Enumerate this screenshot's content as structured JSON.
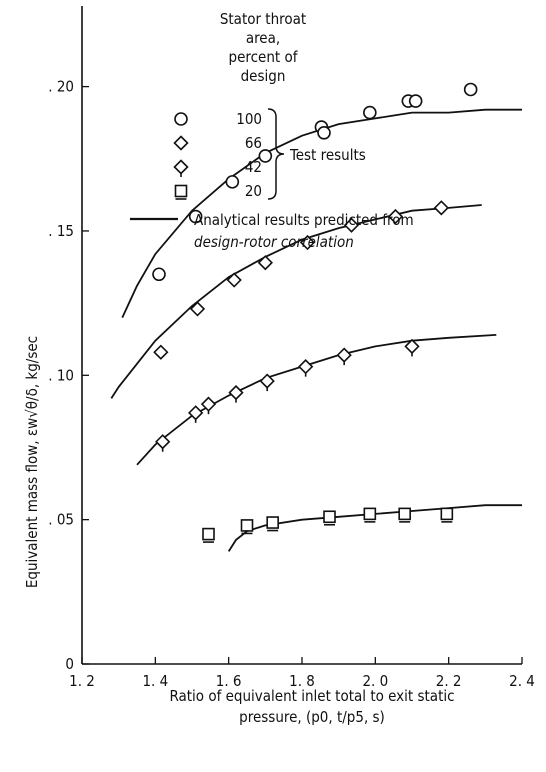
{
  "chart_data": {
    "type": "scatter",
    "xlabel_line1": "Ratio of equivalent inlet total to exit static",
    "xlabel_line2": "pressure, (p0, t/p5, s)",
    "ylabel": "Equivalent mass flow, εw√θ/δ, kg/sec",
    "xlim": [
      1.2,
      2.4
    ],
    "ylim": [
      0,
      0.23
    ],
    "x_ticks": [
      1.2,
      1.4,
      1.6,
      1.8,
      2.0,
      2.2,
      2.4
    ],
    "x_tick_labels": [
      "1. 2",
      "1. 4",
      "1. 6",
      "1. 8",
      "2. 0",
      "2. 2",
      "2. 4"
    ],
    "y_ticks": [
      0,
      0.05,
      0.1,
      0.15,
      0.2
    ],
    "y_tick_labels": [
      "0",
      ". 05",
      ". 10",
      ". 15",
      ". 20"
    ],
    "grid": false,
    "legend": {
      "title": [
        "Stator throat",
        "area,",
        "percent of",
        "design"
      ],
      "entries": [
        {
          "marker": "circle",
          "label": "100"
        },
        {
          "marker": "diamond",
          "label": "66"
        },
        {
          "marker": "diamond-flag",
          "label": "42"
        },
        {
          "marker": "square-flag",
          "label": "20"
        }
      ],
      "bracket_label": "Test results",
      "line_label": [
        "Analytical results predicted from",
        "design-rotor correlation"
      ]
    },
    "series": [
      {
        "marker": "circle",
        "label": "100",
        "points": [
          [
            1.41,
            0.135
          ],
          [
            1.51,
            0.155
          ],
          [
            1.61,
            0.167
          ],
          [
            1.7,
            0.176
          ],
          [
            1.853,
            0.186
          ],
          [
            1.86,
            0.184
          ],
          [
            1.985,
            0.191
          ],
          [
            2.09,
            0.195
          ],
          [
            2.11,
            0.195
          ],
          [
            2.26,
            0.199
          ]
        ],
        "curve": [
          [
            1.31,
            0.12
          ],
          [
            1.35,
            0.131
          ],
          [
            1.4,
            0.142
          ],
          [
            1.5,
            0.157
          ],
          [
            1.6,
            0.168
          ],
          [
            1.7,
            0.177
          ],
          [
            1.8,
            0.183
          ],
          [
            1.9,
            0.187
          ],
          [
            2.0,
            0.189
          ],
          [
            2.1,
            0.191
          ],
          [
            2.2,
            0.191
          ],
          [
            2.3,
            0.192
          ],
          [
            2.4,
            0.192
          ]
        ]
      },
      {
        "marker": "diamond",
        "label": "66",
        "points": [
          [
            1.415,
            0.108
          ],
          [
            1.515,
            0.123
          ],
          [
            1.615,
            0.133
          ],
          [
            1.7,
            0.139
          ],
          [
            1.815,
            0.146
          ],
          [
            1.935,
            0.152
          ],
          [
            2.055,
            0.155
          ],
          [
            2.18,
            0.158
          ]
        ],
        "curve": [
          [
            1.28,
            0.092
          ],
          [
            1.3,
            0.096
          ],
          [
            1.35,
            0.104
          ],
          [
            1.4,
            0.112
          ],
          [
            1.5,
            0.124
          ],
          [
            1.6,
            0.134
          ],
          [
            1.7,
            0.141
          ],
          [
            1.8,
            0.147
          ],
          [
            1.9,
            0.151
          ],
          [
            2.0,
            0.154
          ],
          [
            2.1,
            0.157
          ],
          [
            2.2,
            0.158
          ],
          [
            2.29,
            0.159
          ]
        ]
      },
      {
        "marker": "diamond-flag",
        "label": "42",
        "points": [
          [
            1.42,
            0.077
          ],
          [
            1.51,
            0.087
          ],
          [
            1.545,
            0.09
          ],
          [
            1.62,
            0.094
          ],
          [
            1.705,
            0.098
          ],
          [
            1.81,
            0.103
          ],
          [
            1.915,
            0.107
          ],
          [
            2.1,
            0.11
          ]
        ],
        "curve": [
          [
            1.35,
            0.069
          ],
          [
            1.4,
            0.076
          ],
          [
            1.5,
            0.086
          ],
          [
            1.6,
            0.093
          ],
          [
            1.7,
            0.099
          ],
          [
            1.8,
            0.103
          ],
          [
            1.9,
            0.107
          ],
          [
            2.0,
            0.11
          ],
          [
            2.1,
            0.112
          ],
          [
            2.2,
            0.113
          ],
          [
            2.33,
            0.114
          ]
        ]
      },
      {
        "marker": "square-flag",
        "label": "20",
        "points": [
          [
            1.545,
            0.045
          ],
          [
            1.65,
            0.048
          ],
          [
            1.72,
            0.049
          ],
          [
            1.875,
            0.051
          ],
          [
            1.985,
            0.052
          ],
          [
            2.08,
            0.052
          ],
          [
            2.195,
            0.052
          ]
        ],
        "curve": [
          [
            1.6,
            0.039
          ],
          [
            1.62,
            0.043
          ],
          [
            1.65,
            0.046
          ],
          [
            1.7,
            0.048
          ],
          [
            1.8,
            0.05
          ],
          [
            1.9,
            0.051
          ],
          [
            2.0,
            0.052
          ],
          [
            2.1,
            0.053
          ],
          [
            2.2,
            0.054
          ],
          [
            2.3,
            0.055
          ],
          [
            2.4,
            0.055
          ]
        ]
      }
    ]
  }
}
